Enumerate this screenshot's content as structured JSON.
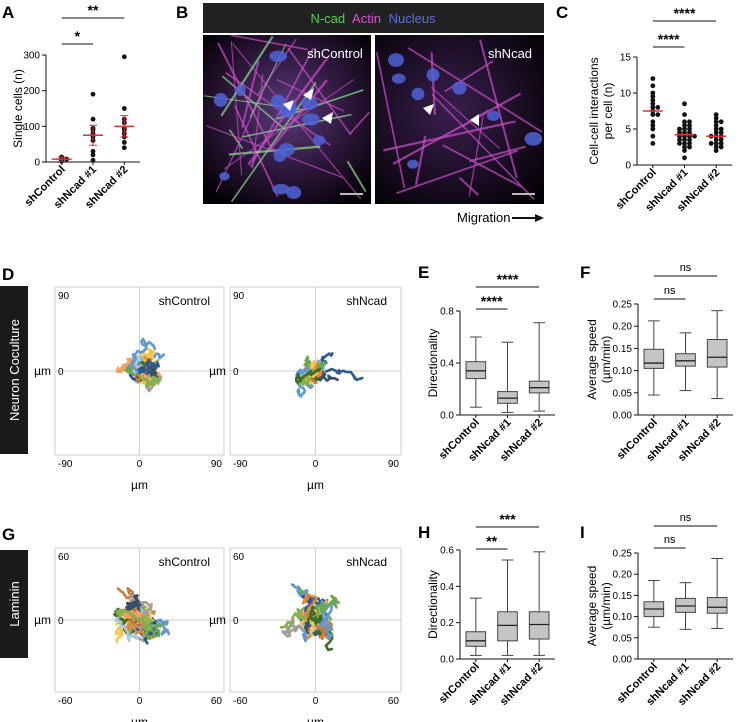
{
  "panels": {
    "A": {
      "label": "A",
      "type": "scatter-dot",
      "ylabel": "Single cells (n)",
      "yticks": [
        "0",
        "100",
        "200",
        "300"
      ],
      "ylim": [
        0,
        300
      ],
      "categories": [
        "shControl",
        "shNcad #1",
        "shNcad #2"
      ],
      "means": [
        8,
        75,
        100
      ],
      "sds": [
        6,
        28,
        30
      ],
      "points": [
        [
          2,
          4,
          5,
          6,
          8,
          8,
          10,
          12,
          14,
          3
        ],
        [
          5,
          20,
          30,
          60,
          70,
          80,
          90,
          95,
          120,
          190
        ],
        [
          40,
          55,
          70,
          80,
          90,
          95,
          110,
          120,
          150,
          295
        ]
      ],
      "significance": [
        {
          "from": 0,
          "to": 1,
          "label": "*"
        },
        {
          "from": 0,
          "to": 2,
          "label": "**"
        }
      ],
      "mean_color": "#e0303a"
    },
    "B": {
      "label": "B",
      "legend": [
        {
          "text": "N-cad",
          "color": "#4dd24d"
        },
        {
          "text": "Actin",
          "color": "#d54fd5"
        },
        {
          "text": "Nucleus",
          "color": "#5b6ee0"
        }
      ],
      "left_title": "shControl",
      "right_title": "shNcad",
      "migration": "Migration"
    },
    "C": {
      "label": "C",
      "type": "scatter-dot",
      "ylabel": "Cell-cell interactions per cell (n)",
      "yticks": [
        "0",
        "5",
        "10",
        "15"
      ],
      "ylim": [
        0,
        15
      ],
      "categories": [
        "shControl",
        "shNcad #1",
        "shNcad #2"
      ],
      "means": [
        7.5,
        4.2,
        4.0
      ],
      "points": [
        [
          12,
          11,
          10,
          9.5,
          9,
          8.5,
          8,
          8,
          7.5,
          7,
          7,
          6,
          5.5,
          5,
          4,
          3
        ],
        [
          8.5,
          7,
          6,
          6,
          5.5,
          5.5,
          5,
          5,
          5,
          4.5,
          4.5,
          4.5,
          4,
          4,
          4,
          4,
          3.5,
          3.5,
          3.5,
          3,
          3,
          3,
          2.5,
          2.5,
          2,
          1
        ],
        [
          7,
          6.5,
          6,
          6,
          5.5,
          5,
          5,
          4.5,
          4.5,
          4,
          4,
          4,
          3.5,
          3.5,
          3,
          3,
          3,
          2.5,
          2.5,
          2
        ]
      ],
      "significance": [
        {
          "from": 0,
          "to": 1,
          "label": "****"
        },
        {
          "from": 0,
          "to": 2,
          "label": "****"
        }
      ],
      "mean_color": "#e0303a"
    },
    "D": {
      "label": "D",
      "band": "Neuron Coculture",
      "left_title": "shControl",
      "right_title": "shNcad",
      "lim": "90",
      "neglim": "-90",
      "zero": "0",
      "xlabel": "µm",
      "ylabel": "µm"
    },
    "E": {
      "label": "E",
      "type": "box",
      "ylabel": "Directionality",
      "yticks": [
        "0.0",
        "0.4",
        "0.8"
      ],
      "ylim": [
        0,
        0.8
      ],
      "categories": [
        "shControl",
        "shNcad #1",
        "shNcad #2"
      ],
      "boxes": [
        {
          "min": 0.06,
          "q1": 0.28,
          "median": 0.34,
          "q3": 0.41,
          "max": 0.6
        },
        {
          "min": 0.02,
          "q1": 0.09,
          "median": 0.13,
          "q3": 0.18,
          "max": 0.56
        },
        {
          "min": 0.03,
          "q1": 0.17,
          "median": 0.21,
          "q3": 0.26,
          "max": 0.71
        }
      ],
      "significance": [
        {
          "from": 0,
          "to": 1,
          "label": "****"
        },
        {
          "from": 0,
          "to": 2,
          "label": "****"
        }
      ]
    },
    "F": {
      "label": "F",
      "type": "box",
      "ylabel": "Average speed (µm/min)",
      "yticks": [
        "0.00",
        "0.05",
        "0.10",
        "0.15",
        "0.20",
        "0.25"
      ],
      "ylim": [
        0,
        0.25
      ],
      "categories": [
        "shControl",
        "shNcad #1",
        "shNcad #2"
      ],
      "boxes": [
        {
          "min": 0.045,
          "q1": 0.105,
          "median": 0.117,
          "q3": 0.148,
          "max": 0.212
        },
        {
          "min": 0.055,
          "q1": 0.11,
          "median": 0.122,
          "q3": 0.138,
          "max": 0.185
        },
        {
          "min": 0.037,
          "q1": 0.108,
          "median": 0.13,
          "q3": 0.17,
          "max": 0.235
        }
      ],
      "significance": [
        {
          "from": 0,
          "to": 1,
          "label": "ns"
        },
        {
          "from": 0,
          "to": 2,
          "label": "ns"
        }
      ]
    },
    "G": {
      "label": "G",
      "band": "Laminin",
      "left_title": "shControl",
      "right_title": "shNcad",
      "lim": "60",
      "neglim": "-60",
      "zero": "0",
      "xlabel": "µm",
      "ylabel": "µm"
    },
    "H": {
      "label": "H",
      "type": "box",
      "ylabel": "Directionality",
      "yticks": [
        "0.0",
        "0.2",
        "0.4",
        "0.6"
      ],
      "ylim": [
        0,
        0.6
      ],
      "categories": [
        "shControl",
        "shNcad #1",
        "shNcad #2"
      ],
      "boxes": [
        {
          "min": 0.02,
          "q1": 0.07,
          "median": 0.1,
          "q3": 0.15,
          "max": 0.335
        },
        {
          "min": 0.02,
          "q1": 0.1,
          "median": 0.185,
          "q3": 0.26,
          "max": 0.545
        },
        {
          "min": 0.02,
          "q1": 0.11,
          "median": 0.19,
          "q3": 0.26,
          "max": 0.59
        }
      ],
      "significance": [
        {
          "from": 0,
          "to": 1,
          "label": "**"
        },
        {
          "from": 0,
          "to": 2,
          "label": "***"
        }
      ]
    },
    "I": {
      "label": "I",
      "type": "box",
      "ylabel": "Average speed (µm/min)",
      "yticks": [
        "0.00",
        "0.05",
        "0.10",
        "0.15",
        "0.20",
        "0.25"
      ],
      "ylim": [
        0,
        0.25
      ],
      "categories": [
        "shControl",
        "shNcad #1",
        "shNcad #2"
      ],
      "boxes": [
        {
          "min": 0.075,
          "q1": 0.1,
          "median": 0.118,
          "q3": 0.135,
          "max": 0.185
        },
        {
          "min": 0.07,
          "q1": 0.11,
          "median": 0.125,
          "q3": 0.143,
          "max": 0.18
        },
        {
          "min": 0.072,
          "q1": 0.108,
          "median": 0.122,
          "q3": 0.145,
          "max": 0.237
        }
      ],
      "significance": [
        {
          "from": 0,
          "to": 1,
          "label": "ns"
        },
        {
          "from": 0,
          "to": 2,
          "label": "ns"
        }
      ]
    }
  }
}
